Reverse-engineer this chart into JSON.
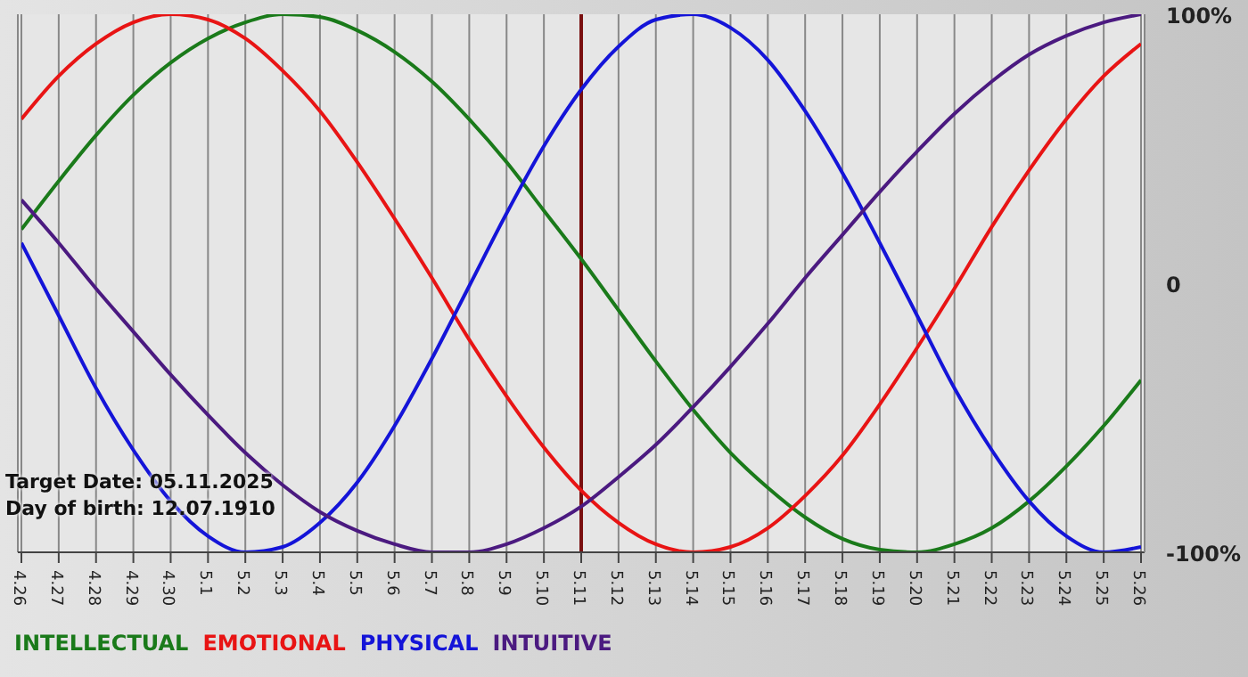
{
  "chart_data": {
    "type": "line",
    "categories": [
      "4.26",
      "4.27",
      "4.28",
      "4.29",
      "4.30",
      "5.1",
      "5.2",
      "5.3",
      "5.4",
      "5.5",
      "5.6",
      "5.7",
      "5.8",
      "5.9",
      "5.10",
      "5.11",
      "5.12",
      "5.13",
      "5.14",
      "5.15",
      "5.16",
      "5.17",
      "5.18",
      "5.19",
      "5.20",
      "5.21",
      "5.22",
      "5.23",
      "5.24",
      "5.25",
      "5.26"
    ],
    "series": [
      {
        "name": "INTELLECTUAL",
        "color": "#1a7a1a",
        "values": [
          20,
          38,
          55,
          70,
          82,
          91,
          97,
          100,
          99,
          94,
          86,
          75,
          61,
          45,
          27,
          9,
          -10,
          -29,
          -47,
          -63,
          -76,
          -87,
          -95,
          -99,
          -100,
          -97,
          -91,
          -81,
          -68,
          -53,
          -36
        ]
      },
      {
        "name": "EMOTIONAL",
        "color": "#e81414",
        "values": [
          61,
          77,
          89,
          97,
          100,
          98,
          91,
          79,
          64,
          45,
          24,
          2,
          -21,
          -42,
          -61,
          -77,
          -89,
          -97,
          -100,
          -98,
          -91,
          -79,
          -64,
          -45,
          -24,
          -2,
          21,
          42,
          61,
          77,
          89
        ]
      },
      {
        "name": "PHYSICAL",
        "color": "#1414d8",
        "values": [
          15,
          -12,
          -39,
          -62,
          -81,
          -94,
          -100,
          -98,
          -89,
          -74,
          -53,
          -28,
          -1,
          26,
          51,
          72,
          88,
          98,
          100,
          95,
          83,
          64,
          41,
          15,
          -12,
          -39,
          -62,
          -81,
          -94,
          -100,
          -98
        ]
      },
      {
        "name": "INTUITIVE",
        "color": "#4b1a80",
        "values": [
          31,
          15,
          -2,
          -18,
          -34,
          -49,
          -63,
          -75,
          -85,
          -92,
          -97,
          -100,
          -100,
          -97,
          -91,
          -83,
          -72,
          -60,
          -46,
          -31,
          -15,
          2,
          18,
          34,
          49,
          63,
          75,
          85,
          92,
          97,
          100
        ]
      }
    ],
    "ylim": [
      -100,
      100
    ],
    "yticks": [
      {
        "value": 100,
        "label": "100%"
      },
      0,
      {
        "value": -100,
        "label": "-100%"
      }
    ],
    "grid": true,
    "legend": "bottom left",
    "marker": "none",
    "ref_lines": [
      {
        "axis": "x",
        "value": "5.11",
        "color": "#7a1010"
      }
    ],
    "annotations": [
      "Target Date: 05.11.2025",
      "Day of birth: 12.07.1910"
    ]
  }
}
